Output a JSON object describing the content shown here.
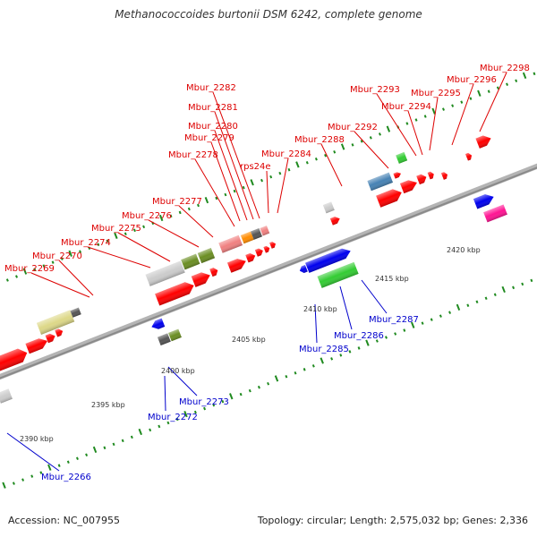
{
  "title": "Methanococcoides burtonii DSM 6242, complete genome",
  "accession_label": "Accession: NC_007955",
  "summary_label": "Topology: circular; Length: 2,575,032 bp; Genes: 2,336",
  "colors": {
    "backbone": "#8a8a8a",
    "tick": "#1f8a1f",
    "top_label": "#dd0000",
    "bottom_label": "#0000cc",
    "red_gene": "#ff0000",
    "blue_gene": "#0000ee",
    "gray_gene": "#cccccc",
    "olive_gene": "#6b8e23",
    "dark_gray_gene": "#555555",
    "khaki_gene": "#ddd888",
    "pink_gene": "#f08080",
    "orange_gene": "#ff8c00",
    "steelblue_gene": "#4682b4",
    "green_gene": "#33cc33",
    "magenta_gene": "#ff1493"
  },
  "scale_labels": [
    {
      "text": "2390 kbp"
    },
    {
      "text": "2395 kbp"
    },
    {
      "text": "2400 kbp"
    },
    {
      "text": "2405 kbp"
    },
    {
      "text": "2410 kbp"
    },
    {
      "text": "2415 kbp"
    },
    {
      "text": "2420 kbp"
    }
  ],
  "top_gene_labels": [
    {
      "text": "Mbur_2269"
    },
    {
      "text": "Mbur_2270"
    },
    {
      "text": "Mbur_2274"
    },
    {
      "text": "Mbur_2275"
    },
    {
      "text": "Mbur_2276"
    },
    {
      "text": "Mbur_2277"
    },
    {
      "text": "Mbur_2278"
    },
    {
      "text": "Mbur_2279"
    },
    {
      "text": "Mbur_2280"
    },
    {
      "text": "Mbur_2281"
    },
    {
      "text": "Mbur_2282"
    },
    {
      "text": "rps24e"
    },
    {
      "text": "Mbur_2284"
    },
    {
      "text": "Mbur_2288"
    },
    {
      "text": "Mbur_2292"
    },
    {
      "text": "Mbur_2293"
    },
    {
      "text": "Mbur_2294"
    },
    {
      "text": "Mbur_2295"
    },
    {
      "text": "Mbur_2296"
    },
    {
      "text": "Mbur_2298"
    }
  ],
  "bottom_gene_labels": [
    {
      "text": "Mbur_2266"
    },
    {
      "text": "Mbur_2272"
    },
    {
      "text": "Mbur_2273"
    },
    {
      "text": "Mbur_2285"
    },
    {
      "text": "Mbur_2286"
    },
    {
      "text": "Mbur_2287"
    }
  ]
}
